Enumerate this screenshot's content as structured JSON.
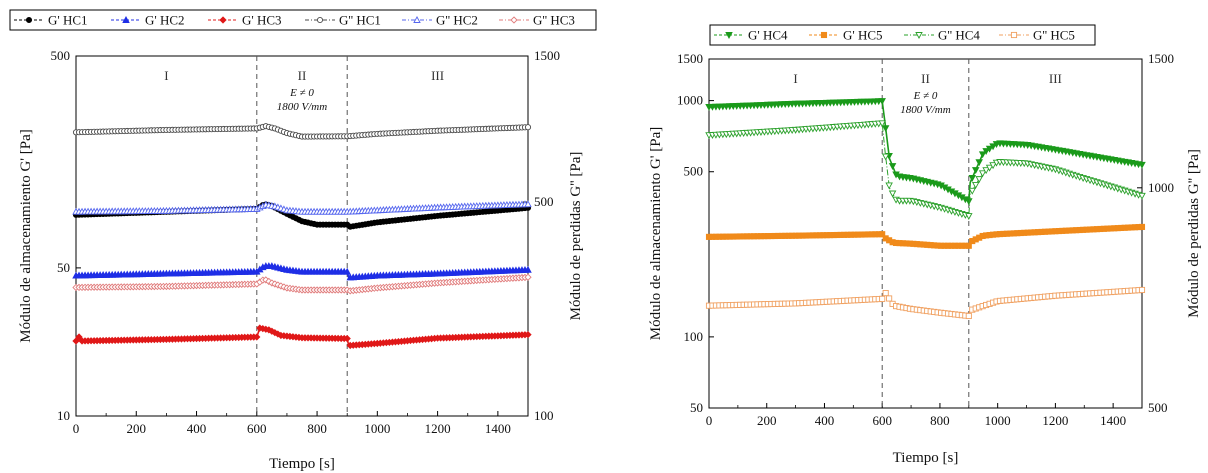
{
  "chart_data": [
    {
      "type": "line",
      "x_axis": {
        "label": "Tiempo [s]",
        "range": [
          0,
          1500
        ],
        "ticks": [
          "0",
          "200",
          "400",
          "600",
          "800",
          "1000",
          "1200",
          "1400"
        ]
      },
      "y_axis_left": {
        "label": "Módulo de almacenamiento G' [Pa]",
        "scale": "log",
        "range": [
          10,
          500
        ],
        "ticks": [
          "10",
          "50",
          "500"
        ],
        "tick_values": [
          10,
          50,
          500
        ]
      },
      "y_axis_right": {
        "label": "Módulo de perdidas G'' [Pa]",
        "scale": "log",
        "range": [
          100,
          1500
        ],
        "ticks": [
          "100",
          "500",
          "1500"
        ],
        "tick_values": [
          100,
          500,
          1500
        ]
      },
      "regions": [
        {
          "label": "I",
          "x": 300
        },
        {
          "label": "II",
          "x": 750
        },
        {
          "label": "III",
          "x": 1200
        }
      ],
      "annotation": {
        "lines": [
          "E ≠ 0",
          "1800 V/mm"
        ],
        "x": 750
      },
      "dividers": [
        600,
        900
      ],
      "legend_position": "top",
      "series": [
        {
          "name": "G' HC1",
          "axis": "left",
          "color": "#000000",
          "marker": "circle-filled",
          "line": "solid",
          "points": [
            [
              0,
              89
            ],
            [
              300,
              92
            ],
            [
              600,
              95
            ],
            [
              625,
              100
            ],
            [
              650,
              98
            ],
            [
              700,
              90
            ],
            [
              750,
              83
            ],
            [
              800,
              80
            ],
            [
              900,
              80
            ],
            [
              905,
              78
            ],
            [
              1000,
              82
            ],
            [
              1200,
              88
            ],
            [
              1500,
              96
            ]
          ]
        },
        {
          "name": "G' HC2",
          "axis": "left",
          "color": "#1f2ee6",
          "marker": "triangle-filled",
          "line": "solid",
          "points": [
            [
              0,
              46
            ],
            [
              300,
              47
            ],
            [
              600,
              48
            ],
            [
              625,
              51
            ],
            [
              650,
              51
            ],
            [
              700,
              49
            ],
            [
              750,
              48
            ],
            [
              900,
              48
            ],
            [
              905,
              45
            ],
            [
              1000,
              46
            ],
            [
              1200,
              47
            ],
            [
              1500,
              49
            ]
          ]
        },
        {
          "name": "G' HC3",
          "axis": "left",
          "color": "#e01818",
          "marker": "diamond-filled",
          "line": "solid",
          "points": [
            [
              0,
              22.6
            ],
            [
              10,
              23.6
            ],
            [
              20,
              22.6
            ],
            [
              300,
              23
            ],
            [
              600,
              23.6
            ],
            [
              610,
              26
            ],
            [
              640,
              25.5
            ],
            [
              680,
              24
            ],
            [
              750,
              23.4
            ],
            [
              900,
              23.2
            ],
            [
              905,
              21.5
            ],
            [
              1000,
              22
            ],
            [
              1200,
              23.3
            ],
            [
              1500,
              24.2
            ]
          ]
        },
        {
          "name": "G'' HC1",
          "axis": "right",
          "color": "#4a4a4a",
          "marker": "circle-open",
          "line": "dash-dot",
          "points": [
            [
              0,
              845
            ],
            [
              300,
              860
            ],
            [
              600,
              870
            ],
            [
              630,
              885
            ],
            [
              660,
              870
            ],
            [
              700,
              840
            ],
            [
              750,
              818
            ],
            [
              900,
              820
            ],
            [
              1000,
              835
            ],
            [
              1200,
              855
            ],
            [
              1500,
              878
            ]
          ]
        },
        {
          "name": "G'' HC2",
          "axis": "right",
          "color": "#5566ee",
          "marker": "triangle-open",
          "line": "dash-dot",
          "points": [
            [
              0,
              465
            ],
            [
              300,
              468
            ],
            [
              600,
              475
            ],
            [
              630,
              490
            ],
            [
              660,
              484
            ],
            [
              700,
              470
            ],
            [
              750,
              465
            ],
            [
              900,
              465
            ],
            [
              1000,
              470
            ],
            [
              1200,
              480
            ],
            [
              1500,
              492
            ]
          ]
        },
        {
          "name": "G'' HC3",
          "axis": "right",
          "color": "#e07a7a",
          "marker": "diamond-open",
          "line": "dash-dot",
          "points": [
            [
              0,
              263
            ],
            [
              300,
              265
            ],
            [
              600,
              270
            ],
            [
              625,
              280
            ],
            [
              650,
              272
            ],
            [
              700,
              262
            ],
            [
              750,
              258
            ],
            [
              900,
              258
            ],
            [
              905,
              256
            ],
            [
              1000,
              262
            ],
            [
              1200,
              272
            ],
            [
              1500,
              284
            ]
          ]
        }
      ]
    },
    {
      "type": "line",
      "x_axis": {
        "label": "Tiempo [s]",
        "range": [
          0,
          1500
        ],
        "ticks": [
          "0",
          "200",
          "400",
          "600",
          "800",
          "1000",
          "1200",
          "1400"
        ]
      },
      "y_axis_left": {
        "label": "Módulo de almacenamiento G' [Pa]",
        "scale": "log",
        "range": [
          50,
          1500
        ],
        "ticks": [
          "50",
          "100",
          "500",
          "1000",
          "1500"
        ],
        "tick_values": [
          50,
          100,
          500,
          1000,
          1500
        ]
      },
      "y_axis_right": {
        "label": "Módulo de perdidas G'' [Pa]",
        "scale": "log",
        "range": [
          500,
          1500
        ],
        "ticks": [
          "500",
          "1000",
          "1500"
        ],
        "tick_values": [
          500,
          1000,
          1500
        ]
      },
      "regions": [
        {
          "label": "I",
          "x": 300
        },
        {
          "label": "II",
          "x": 750
        },
        {
          "label": "III",
          "x": 1200
        }
      ],
      "annotation": {
        "lines": [
          "E ≠ 0",
          "1800 V/mm"
        ],
        "x": 750
      },
      "dividers": [
        600,
        900
      ],
      "legend_position": "top",
      "series": [
        {
          "name": "G' HC4",
          "axis": "left",
          "color": "#1a9a1a",
          "marker": "triangle-down-filled",
          "line": "solid",
          "points": [
            [
              0,
              940
            ],
            [
              300,
              970
            ],
            [
              600,
              995
            ],
            [
              610,
              800
            ],
            [
              625,
              570
            ],
            [
              650,
              480
            ],
            [
              670,
              475
            ],
            [
              700,
              470
            ],
            [
              800,
              440
            ],
            [
              900,
              375
            ],
            [
              905,
              450
            ],
            [
              950,
              600
            ],
            [
              1000,
              660
            ],
            [
              1100,
              650
            ],
            [
              1200,
              620
            ],
            [
              1300,
              590
            ],
            [
              1500,
              535
            ]
          ]
        },
        {
          "name": "G' HC5",
          "axis": "left",
          "color": "#f08a1a",
          "marker": "square-filled",
          "line": "solid",
          "points": [
            [
              0,
              265
            ],
            [
              300,
              268
            ],
            [
              600,
              272
            ],
            [
              610,
              262
            ],
            [
              640,
              250
            ],
            [
              700,
              248
            ],
            [
              800,
              243
            ],
            [
              900,
              243
            ],
            [
              905,
              252
            ],
            [
              950,
              268
            ],
            [
              1000,
              272
            ],
            [
              1200,
              280
            ],
            [
              1500,
              292
            ]
          ]
        },
        {
          "name": "G'' HC4",
          "axis": "right",
          "color": "#2aa02a",
          "marker": "triangle-down-open",
          "line": "dash-dot",
          "points": [
            [
              0,
              1180
            ],
            [
              300,
              1200
            ],
            [
              600,
              1225
            ],
            [
              610,
              1120
            ],
            [
              625,
              1000
            ],
            [
              650,
              960
            ],
            [
              700,
              960
            ],
            [
              800,
              940
            ],
            [
              900,
              915
            ],
            [
              905,
              980
            ],
            [
              950,
              1050
            ],
            [
              1000,
              1085
            ],
            [
              1100,
              1080
            ],
            [
              1200,
              1060
            ],
            [
              1300,
              1030
            ],
            [
              1500,
              975
            ]
          ]
        },
        {
          "name": "G'' HC5",
          "axis": "right",
          "color": "#f0a060",
          "marker": "square-open",
          "line": "dash-dot",
          "points": [
            [
              0,
              690
            ],
            [
              300,
              695
            ],
            [
              600,
              705
            ],
            [
              610,
              720
            ],
            [
              640,
              690
            ],
            [
              700,
              683
            ],
            [
              800,
              675
            ],
            [
              900,
              668
            ],
            [
              905,
              680
            ],
            [
              1000,
              700
            ],
            [
              1200,
              712
            ],
            [
              1500,
              725
            ]
          ]
        }
      ]
    }
  ]
}
